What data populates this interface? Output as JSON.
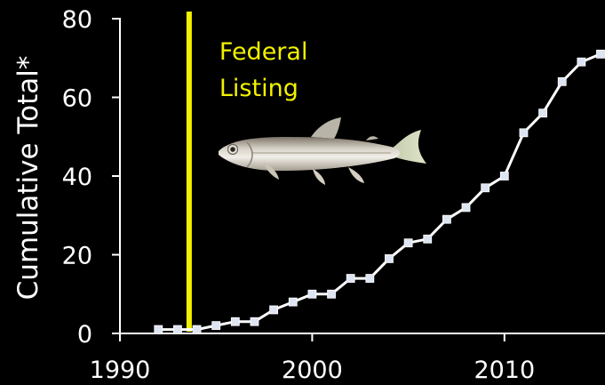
{
  "chart_data": {
    "type": "line",
    "ylabel": "Cumulative Total*",
    "xlabel": "",
    "xlim": [
      1990,
      2015
    ],
    "ylim": [
      0,
      80
    ],
    "x_ticks": [
      1990,
      2000,
      2010
    ],
    "y_ticks": [
      0,
      20,
      40,
      60,
      80
    ],
    "grid": false,
    "series": [
      {
        "x": [
          1992,
          1993,
          1994,
          1995,
          1996,
          1997,
          1998,
          1999,
          2000,
          2001,
          2002,
          2003,
          2004,
          2005,
          2006,
          2007,
          2008,
          2009,
          2010,
          2011,
          2012,
          2013,
          2014,
          2015
        ],
        "y": [
          1,
          1,
          1,
          2,
          3,
          3,
          6,
          8,
          10,
          10,
          14,
          14,
          19,
          23,
          24,
          29,
          32,
          37,
          40,
          51,
          56,
          64,
          69,
          71
        ]
      }
    ],
    "annotations": [
      {
        "x": 1993.6,
        "label_lines": [
          "Federal",
          "Listing"
        ]
      }
    ],
    "colors": {
      "line": "#ffffff",
      "marker": "#dde4f2",
      "annotation": "#f2f200",
      "background": "#000000"
    }
  },
  "image": {
    "icon": "fish-icon"
  }
}
